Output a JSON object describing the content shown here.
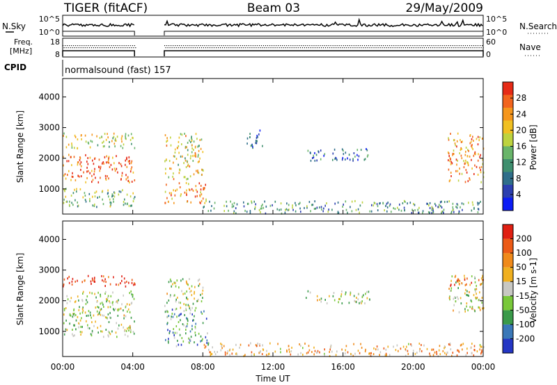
{
  "header": {
    "station": "TIGER (fitACF)",
    "beam": "Beam 03",
    "date": "29/May/2009"
  },
  "top_panels": {
    "nsky_label": "N.Sky",
    "nsky_ticks": [
      "10^5",
      "10^0"
    ],
    "nsearch_label": "N.Search",
    "nsearch_ticks": [
      "10^5",
      "10^0"
    ],
    "freq_label_1": "Freq.",
    "freq_label_2": "[MHz]",
    "freq_ticks": [
      "18",
      "8"
    ],
    "nave_label": "Nave",
    "nave_ticks": [
      "60",
      "0"
    ],
    "cpid_label": "CPID",
    "cpid_text": "normalsound (fast) 157"
  },
  "chart_data": [
    {
      "type": "heatmap",
      "panel": "power",
      "ylabel": "Slant Range [km]",
      "yticks": [
        1000,
        2000,
        3000,
        4000
      ],
      "ylim": [
        180,
        4600
      ],
      "xlim_hours": [
        0,
        24
      ],
      "data_gap_hours": [
        4.1,
        5.8
      ],
      "colorbar_label": "Power [dB]",
      "colorbar_ticks": [
        "4",
        "8",
        "12",
        "16",
        "20",
        "24",
        "28"
      ],
      "colorbar_colors": [
        "#0c1cf5",
        "#2c3fb0",
        "#2f6e8a",
        "#3f8f6f",
        "#69b56a",
        "#bdd33f",
        "#f0c022",
        "#f5961c",
        "#f2641d",
        "#e62a16"
      ],
      "scatter_regions": [
        {
          "t0": 0.0,
          "t1": 4.1,
          "r0": 1200,
          "r1": 2100,
          "level": 0.85
        },
        {
          "t0": 0.0,
          "t1": 4.1,
          "r0": 2300,
          "r1": 2800,
          "level": 0.6
        },
        {
          "t0": 0.0,
          "t1": 4.1,
          "r0": 400,
          "r1": 1000,
          "level": 0.45
        },
        {
          "t0": 5.8,
          "t1": 8.2,
          "r0": 500,
          "r1": 1200,
          "level": 0.8
        },
        {
          "t0": 5.8,
          "t1": 8.0,
          "r0": 1300,
          "r1": 2800,
          "level": 0.6
        },
        {
          "t0": 8.0,
          "t1": 24.0,
          "r0": 180,
          "r1": 600,
          "level": 0.35
        },
        {
          "t0": 13.8,
          "t1": 17.5,
          "r0": 1900,
          "r1": 2300,
          "level": 0.25
        },
        {
          "t0": 10.5,
          "t1": 11.5,
          "r0": 2300,
          "r1": 2900,
          "level": 0.2
        },
        {
          "t0": 21.9,
          "t1": 24.0,
          "r0": 1200,
          "r1": 2800,
          "level": 0.75
        }
      ]
    },
    {
      "type": "heatmap",
      "panel": "velocity",
      "ylabel": "Slant Range [km]",
      "yticks": [
        1000,
        2000,
        3000,
        4000
      ],
      "ylim": [
        180,
        4600
      ],
      "xlim_hours": [
        0,
        24
      ],
      "data_gap_hours": [
        4.1,
        5.8
      ],
      "xticks": [
        "00:00",
        "04:00",
        "08:00",
        "12:00",
        "16:00",
        "20:00",
        "00:00"
      ],
      "xlabel": "Time UT",
      "colorbar_label": "Velocity [m s-1]",
      "colorbar_ticks": [
        "200",
        "100",
        "50",
        "15",
        "-15",
        "-50",
        "-100",
        "-200"
      ],
      "colorbar_colors": [
        "#2436c4",
        "#3a78b8",
        "#3a9a4a",
        "#79c83a",
        "#c8c8c3",
        "#f0b020",
        "#f08a1a",
        "#ec5a16",
        "#e01f12"
      ],
      "scatter_regions": [
        {
          "t0": 0.0,
          "t1": 4.1,
          "r0": 2450,
          "r1": 2800,
          "level": 0.95
        },
        {
          "t0": 0.0,
          "t1": 4.1,
          "r0": 800,
          "r1": 2300,
          "level": 0.45
        },
        {
          "t0": 5.8,
          "t1": 8.3,
          "r0": 500,
          "r1": 1700,
          "level": 0.3
        },
        {
          "t0": 5.8,
          "t1": 8.0,
          "r0": 1700,
          "r1": 2700,
          "level": 0.45
        },
        {
          "t0": 8.0,
          "t1": 24.0,
          "r0": 180,
          "r1": 600,
          "level": 0.65
        },
        {
          "t0": 13.8,
          "t1": 17.5,
          "r0": 1900,
          "r1": 2300,
          "level": 0.45
        },
        {
          "t0": 21.9,
          "t1": 24.0,
          "r0": 1600,
          "r1": 2800,
          "level": 0.5
        },
        {
          "t0": 22.0,
          "t1": 24.0,
          "r0": 2450,
          "r1": 2750,
          "level": 0.85
        }
      ]
    }
  ]
}
